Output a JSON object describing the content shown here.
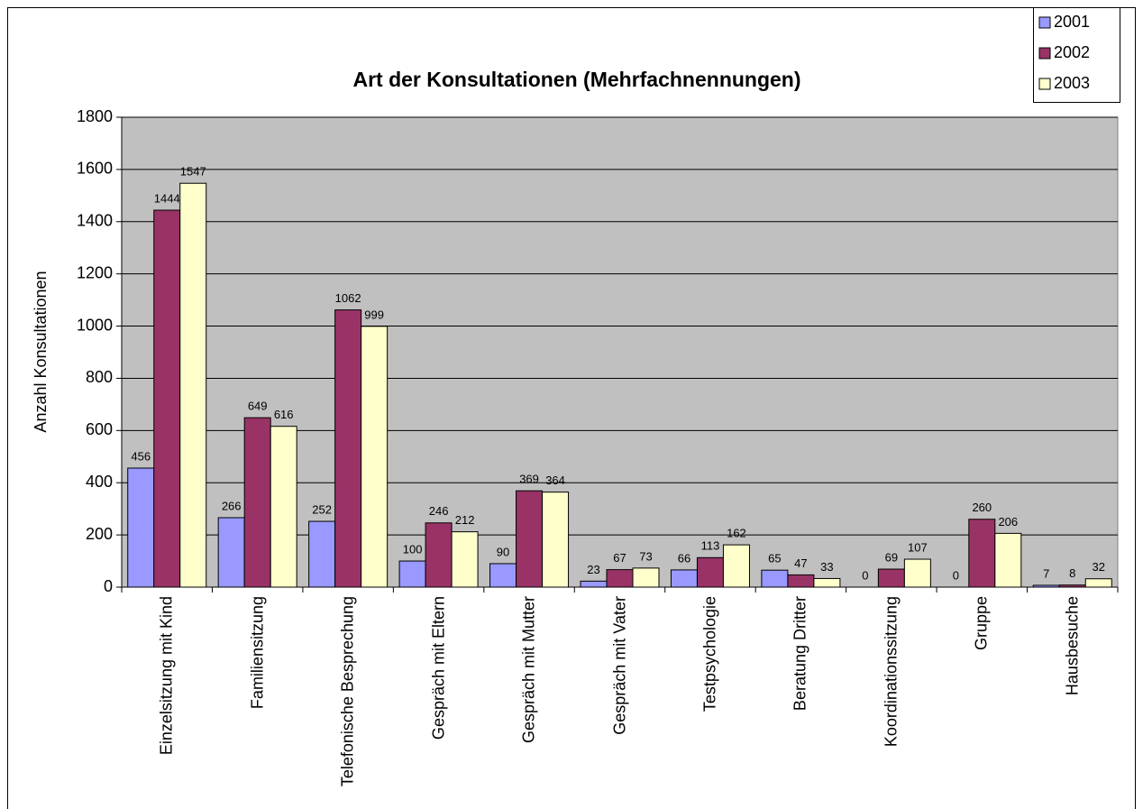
{
  "chart_data": {
    "type": "bar",
    "title": "Art der Konsultationen (Mehrfachnennungen)",
    "ylabel": "Anzahl Konsultationen",
    "categories": [
      "Einzelsitzung mit Kind",
      "Familiensitzung",
      "Telefonische Besprechung",
      "Gespräch mit Eltern",
      "Gespräch mit Mutter",
      "Gespräch mit Vater",
      "Testpsychologie",
      "Beratung Dritter",
      "Koordinationssitzung",
      "Gruppe",
      "Hausbesuche"
    ],
    "series": [
      {
        "name": "2001",
        "color": "#9999ff",
        "values": [
          456,
          266,
          252,
          100,
          90,
          23,
          66,
          65,
          0,
          0,
          7
        ]
      },
      {
        "name": "2002",
        "color": "#993366",
        "values": [
          1444,
          649,
          1062,
          246,
          369,
          67,
          113,
          47,
          69,
          260,
          8
        ]
      },
      {
        "name": "2003",
        "color": "#ffffcc",
        "values": [
          1547,
          616,
          999,
          212,
          364,
          73,
          162,
          33,
          107,
          206,
          32
        ]
      }
    ],
    "ylim": [
      0,
      1800
    ],
    "yticks": [
      0,
      200,
      400,
      600,
      800,
      1000,
      1200,
      1400,
      1600,
      1800
    ],
    "grid": true,
    "legend": "top-right",
    "plot_background": "#c0c0c0"
  }
}
